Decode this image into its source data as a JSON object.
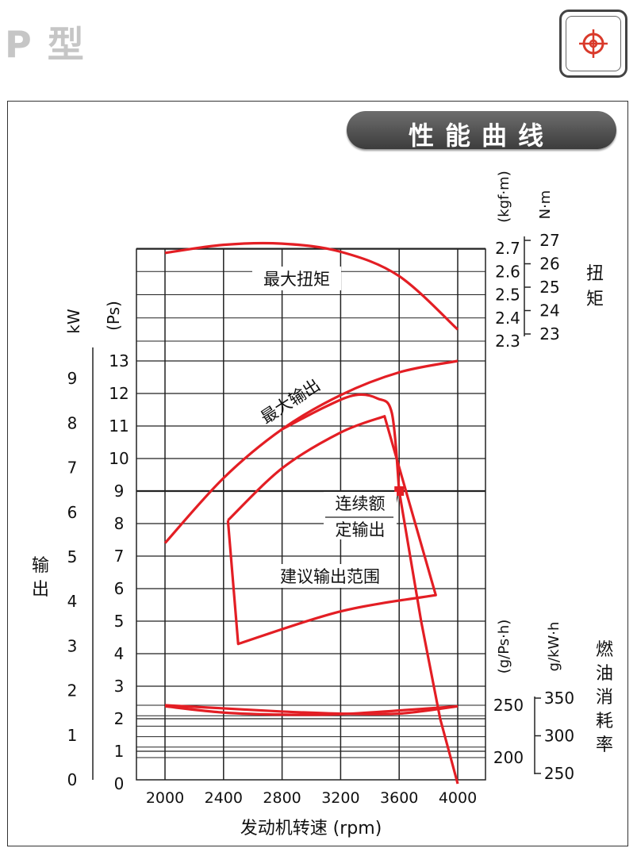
{
  "header": {
    "title": "P 型"
  },
  "logo": {
    "icon": "crosshair-logo-icon",
    "color": "#d93a2b"
  },
  "chart_banner": "性能曲线",
  "chart_data": {
    "type": "line",
    "xlabel": "发动机转速 (rpm)",
    "x_ticks": [
      "2000",
      "2400",
      "2800",
      "3200",
      "3600",
      "4000"
    ],
    "xlim": [
      2000,
      4000
    ],
    "grid": true,
    "curve_color": "#e31e24",
    "torque_axis": {
      "label": "扭矩",
      "unit_primary": "(kgf·m)",
      "unit_secondary": "N·m",
      "ticks_primary": [
        "2.7",
        "2.6",
        "2.5",
        "2.4",
        "2.3"
      ],
      "ticks_secondary": [
        "27",
        "26",
        "25",
        "24",
        "23"
      ]
    },
    "output_axis": {
      "label": "输出",
      "unit_kw": "kW",
      "unit_ps": "(Ps)",
      "ticks_kw": [
        "9",
        "8",
        "7",
        "6",
        "5",
        "4",
        "3",
        "2",
        "1",
        "0"
      ],
      "ticks_ps": [
        "13",
        "12",
        "11",
        "10",
        "9",
        "8",
        "7",
        "6",
        "5",
        "4",
        "3",
        "2",
        "1",
        "0"
      ]
    },
    "fuel_axis": {
      "label": "燃油消耗率",
      "unit_primary": "(g/Ps·h)",
      "unit_secondary": "g/kW·h",
      "ticks_primary": [
        "250",
        "200"
      ],
      "ticks_secondary": [
        "350",
        "300",
        "250"
      ]
    },
    "series": [
      {
        "name": "最大扭矩",
        "axis": "torque_kgfm",
        "points": [
          [
            2000,
            2.68
          ],
          [
            2400,
            2.715
          ],
          [
            2800,
            2.72
          ],
          [
            3200,
            2.685
          ],
          [
            3600,
            2.58
          ],
          [
            4000,
            2.35
          ]
        ]
      },
      {
        "name": "最大输出",
        "axis": "output_ps",
        "points": [
          [
            2000,
            7.4
          ],
          [
            2400,
            9.4
          ],
          [
            2800,
            10.9
          ],
          [
            3200,
            11.95
          ],
          [
            3600,
            12.65
          ],
          [
            4000,
            13.0
          ]
        ]
      },
      {
        "name": "建议输出范围",
        "axis": "output_ps",
        "points": [
          [
            2430,
            8.1
          ],
          [
            2800,
            9.7
          ],
          [
            3200,
            10.8
          ],
          [
            3500,
            11.3
          ],
          [
            3850,
            5.8
          ],
          [
            3200,
            5.3
          ],
          [
            2500,
            4.3
          ],
          [
            2430,
            8.1
          ]
        ]
      },
      {
        "name": "",
        "axis": "output_ps",
        "points": [
          [
            2800,
            10.9
          ],
          [
            3100,
            11.6
          ],
          [
            3300,
            11.95
          ],
          [
            3450,
            11.85
          ],
          [
            3550,
            11.4
          ],
          [
            3600,
            9.0
          ],
          [
            3750,
            5.0
          ],
          [
            3880,
            2.0
          ],
          [
            4000,
            0.0
          ]
        ]
      },
      {
        "name": "",
        "axis": "fuel_gpsh",
        "points": [
          [
            2000,
            249
          ],
          [
            2400,
            243
          ],
          [
            2800,
            241
          ],
          [
            3200,
            241.5
          ],
          [
            3600,
            245
          ],
          [
            4000,
            249
          ]
        ]
      },
      {
        "name": "",
        "axis": "fuel_gpsh",
        "points": [
          [
            2000,
            250
          ],
          [
            2400,
            247
          ],
          [
            2800,
            244
          ],
          [
            3200,
            242
          ],
          [
            3600,
            242
          ],
          [
            4000,
            249
          ]
        ]
      }
    ],
    "marker": {
      "label": [
        "连续额",
        "定输出"
      ],
      "x": 3600,
      "y_ps": 9.0
    }
  }
}
